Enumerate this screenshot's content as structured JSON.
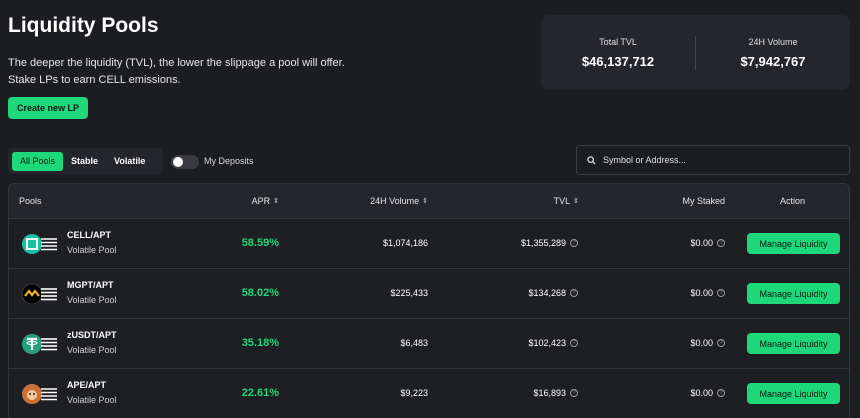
{
  "header": {
    "title": "Liquidity Pools",
    "description_line1": "The deeper the liquidity (TVL), the lower the slippage a pool will offer.",
    "description_line2": "Stake LPs to earn CELL emissions.",
    "create_button": "Create new LP"
  },
  "stats": {
    "tvl_label": "Total TVL",
    "tvl_value": "$46,137,712",
    "volume_label": "24H Volume",
    "volume_value": "$7,942,767"
  },
  "filters": {
    "tabs": [
      "All Pools",
      "Stable",
      "Volatile"
    ],
    "active_tab": "All Pools",
    "deposits_label": "My Deposits",
    "deposits_on": false
  },
  "search": {
    "placeholder": "Symbol or Address..."
  },
  "table": {
    "headers": {
      "pools": "Pools",
      "apr": "APR",
      "volume": "24H Volume",
      "tvl": "TVL",
      "staked": "My Staked",
      "action": "Action"
    },
    "rows": [
      {
        "name": "CELL/APT",
        "type": "Volatile Pool",
        "apr": "58.59%",
        "volume": "$1,074,186",
        "tvl": "$1,355,289",
        "staked": "$0.00",
        "action": "Manage Liquidity",
        "icon": "cell-token-icon"
      },
      {
        "name": "MGPT/APT",
        "type": "Volatile Pool",
        "apr": "58.02%",
        "volume": "$225,433",
        "tvl": "$134,268",
        "staked": "$0.00",
        "action": "Manage Liquidity",
        "icon": "mgpt-token-icon"
      },
      {
        "name": "zUSDT/APT",
        "type": "Volatile Pool",
        "apr": "35.18%",
        "volume": "$6,483",
        "tvl": "$102,423",
        "staked": "$0.00",
        "action": "Manage Liquidity",
        "icon": "usdt-token-icon"
      },
      {
        "name": "APE/APT",
        "type": "Volatile Pool",
        "apr": "22.61%",
        "volume": "$9,223",
        "tvl": "$16,893",
        "staked": "$0.00",
        "action": "Manage Liquidity",
        "icon": "ape-token-icon"
      }
    ]
  },
  "colors": {
    "accent": "#1ed77a",
    "background": "#1c1d21",
    "panel": "#25262b"
  }
}
